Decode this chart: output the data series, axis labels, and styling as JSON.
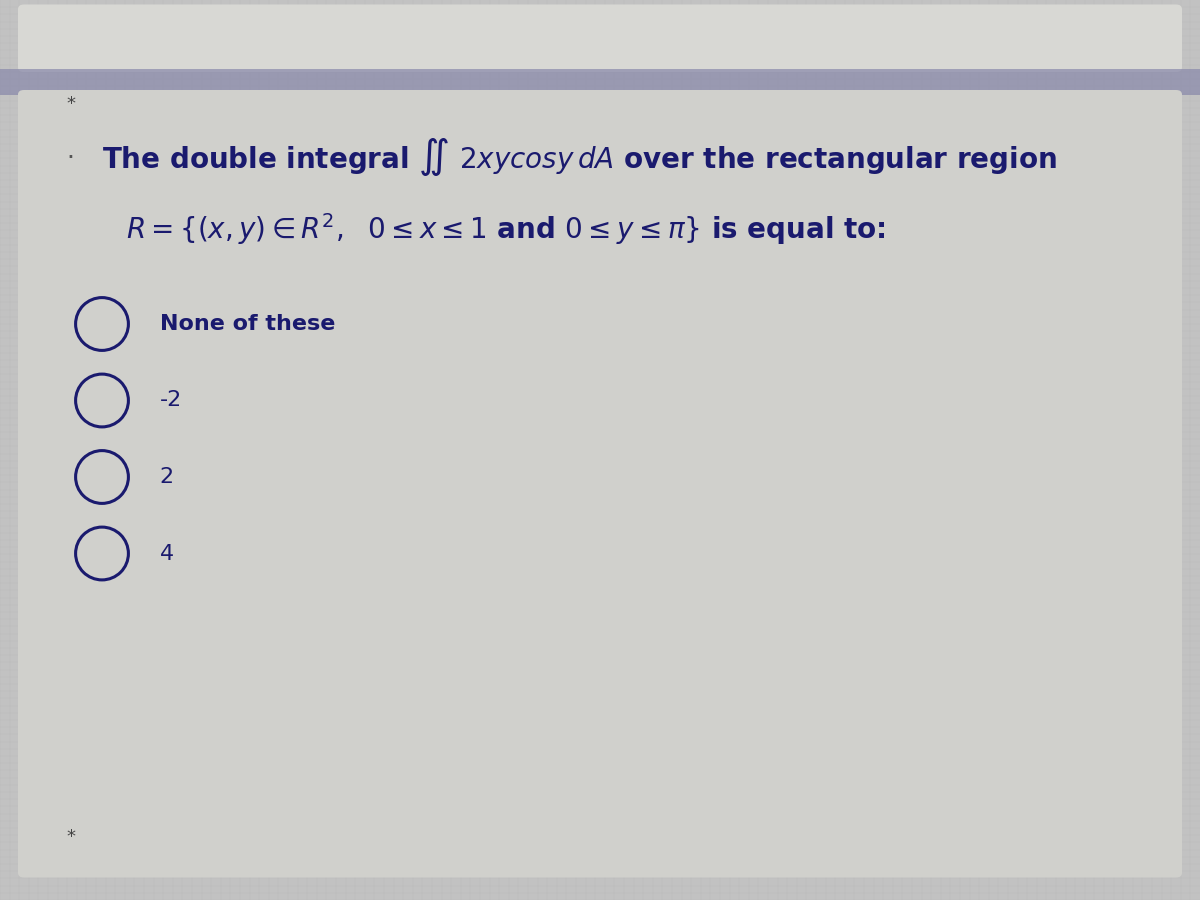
{
  "bg_color": "#c2c2c2",
  "panel_color": "#d0d0ce",
  "separator_color": "#8888aa",
  "text_color": "#1a1a6e",
  "star_color": "#444444",
  "dot_color": "#555555",
  "line1": "The double integral $\\iint$ $2xy\\mathrm{cos}y\\,dA$ over the rectangular region",
  "line2": "$R = \\{(x, y) \\in R^2,\\;\\, 0 \\leq x \\leq 1$ and $0 \\leq y \\leq \\pi\\}$ is equal to:",
  "options": [
    "None of these",
    "-2",
    "2",
    "4"
  ],
  "font_size_main": 20,
  "font_size_options": 16,
  "circle_r": 0.022
}
